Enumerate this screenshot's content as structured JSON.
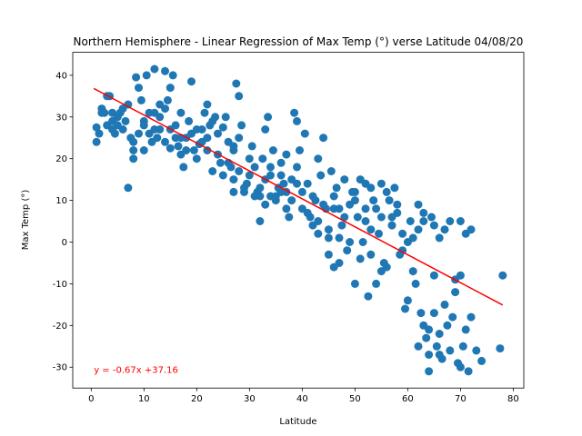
{
  "chart_data": {
    "type": "scatter",
    "title": "Northern Hemisphere - Linear Regression of Max Temp (°) verse Latitude 04/08/20",
    "xlabel": "Latitude",
    "ylabel": "Max Temp (°)",
    "xlim": [
      -3.5,
      82
    ],
    "ylim": [
      -35,
      45.5
    ],
    "xticks": [
      0,
      10,
      20,
      30,
      40,
      50,
      60,
      70,
      80
    ],
    "yticks": [
      -30,
      -20,
      -10,
      0,
      10,
      20,
      30,
      40
    ],
    "grid": false,
    "point_color": "#1f77b4",
    "regression": {
      "slope": -0.67,
      "intercept": 37.16,
      "x_range": [
        0.5,
        78
      ],
      "color": "#ff0000",
      "equation_text": "y = -0.67x +37.16",
      "equation_position": [
        0.5,
        -30.5
      ]
    },
    "points": [
      [
        1,
        24
      ],
      [
        1,
        27.5
      ],
      [
        1.5,
        26
      ],
      [
        2,
        32
      ],
      [
        2.5,
        31
      ],
      [
        3,
        35
      ],
      [
        3.5,
        35
      ],
      [
        3,
        28
      ],
      [
        4,
        27
      ],
      [
        4.5,
        26
      ],
      [
        4,
        31
      ],
      [
        5,
        30
      ],
      [
        5.5,
        31
      ],
      [
        5,
        28
      ],
      [
        6,
        27
      ],
      [
        6.5,
        29
      ],
      [
        7,
        33
      ],
      [
        7,
        13
      ],
      [
        7.5,
        25
      ],
      [
        8,
        22
      ],
      [
        8,
        20
      ],
      [
        8.5,
        39.5
      ],
      [
        9,
        26
      ],
      [
        9.5,
        34
      ],
      [
        9,
        37
      ],
      [
        10,
        28
      ],
      [
        10,
        22
      ],
      [
        10.5,
        40
      ],
      [
        11,
        26
      ],
      [
        11,
        31
      ],
      [
        11.5,
        24
      ],
      [
        12,
        41.5
      ],
      [
        12,
        27
      ],
      [
        12.5,
        25
      ],
      [
        13,
        33
      ],
      [
        13,
        30
      ],
      [
        14,
        41
      ],
      [
        14,
        32
      ],
      [
        14.5,
        34
      ],
      [
        15,
        27
      ],
      [
        15,
        22.5
      ],
      [
        15,
        37
      ],
      [
        15.5,
        40
      ],
      [
        16,
        25
      ],
      [
        16.5,
        23
      ],
      [
        17,
        31
      ],
      [
        17,
        21
      ],
      [
        17.5,
        18
      ],
      [
        18,
        25
      ],
      [
        18.5,
        29
      ],
      [
        19,
        38.5
      ],
      [
        19.5,
        22
      ],
      [
        20,
        20
      ],
      [
        20.5,
        23.5
      ],
      [
        21,
        27
      ],
      [
        21.5,
        31
      ],
      [
        22,
        25
      ],
      [
        22.5,
        28
      ],
      [
        22,
        22
      ],
      [
        23,
        17
      ],
      [
        23.5,
        30
      ],
      [
        24,
        26
      ],
      [
        24.5,
        19
      ],
      [
        25,
        27.5
      ],
      [
        25.5,
        30
      ],
      [
        26,
        24
      ],
      [
        26.5,
        18
      ],
      [
        27,
        22
      ],
      [
        27.5,
        38
      ],
      [
        27,
        15
      ],
      [
        28,
        17
      ],
      [
        28.5,
        28
      ],
      [
        28,
        35
      ],
      [
        29,
        12
      ],
      [
        29.5,
        14
      ],
      [
        30,
        20
      ],
      [
        30.5,
        23
      ],
      [
        31,
        18
      ],
      [
        31.5,
        12
      ],
      [
        32,
        5
      ],
      [
        32,
        11
      ],
      [
        32.5,
        20
      ],
      [
        33,
        15
      ],
      [
        33,
        27
      ],
      [
        33.5,
        30
      ],
      [
        34,
        16
      ],
      [
        34.5,
        22
      ],
      [
        34,
        11
      ],
      [
        35,
        10
      ],
      [
        35.5,
        13
      ],
      [
        36,
        12
      ],
      [
        36.5,
        14
      ],
      [
        36,
        19
      ],
      [
        37,
        21
      ],
      [
        37,
        8
      ],
      [
        37.5,
        6
      ],
      [
        38,
        15
      ],
      [
        38.5,
        31
      ],
      [
        39,
        29
      ],
      [
        39,
        18
      ],
      [
        39.5,
        22
      ],
      [
        40,
        12
      ],
      [
        40.5,
        26
      ],
      [
        41,
        14
      ],
      [
        41.5,
        6
      ],
      [
        42,
        4
      ],
      [
        42.5,
        10
      ],
      [
        43,
        20
      ],
      [
        43,
        5
      ],
      [
        43.5,
        16
      ],
      [
        44,
        25
      ],
      [
        44.5,
        8
      ],
      [
        45,
        3
      ],
      [
        45,
        -3
      ],
      [
        45.5,
        17
      ],
      [
        46,
        11
      ],
      [
        46.5,
        13
      ],
      [
        47,
        8
      ],
      [
        47,
        -5
      ],
      [
        47.5,
        4
      ],
      [
        48,
        15
      ],
      [
        48.5,
        -2
      ],
      [
        49,
        9
      ],
      [
        49.5,
        12
      ],
      [
        50,
        10
      ],
      [
        50,
        -10
      ],
      [
        50.5,
        6
      ],
      [
        51,
        15
      ],
      [
        51,
        -4
      ],
      [
        51.5,
        0
      ],
      [
        52,
        14
      ],
      [
        52.5,
        -13
      ],
      [
        53,
        13
      ],
      [
        53.5,
        10
      ],
      [
        54,
        8
      ],
      [
        54.5,
        2
      ],
      [
        55,
        -7
      ],
      [
        55,
        14
      ],
      [
        55.5,
        -5
      ],
      [
        56,
        12
      ],
      [
        56.5,
        10
      ],
      [
        57,
        4
      ],
      [
        57.5,
        13
      ],
      [
        58,
        7
      ],
      [
        58.5,
        -3
      ],
      [
        59,
        2
      ],
      [
        59.5,
        -16
      ],
      [
        60,
        -14
      ],
      [
        60.5,
        5
      ],
      [
        61,
        -7
      ],
      [
        61.5,
        -10
      ],
      [
        62,
        9
      ],
      [
        62.5,
        -17
      ],
      [
        63,
        -20
      ],
      [
        63.5,
        -23
      ],
      [
        64,
        -27
      ],
      [
        64,
        -31
      ],
      [
        64.5,
        6
      ],
      [
        65,
        -17
      ],
      [
        65,
        -8
      ],
      [
        65.5,
        -25
      ],
      [
        66,
        -22
      ],
      [
        66.5,
        -28
      ],
      [
        67,
        -15
      ],
      [
        67.5,
        -20
      ],
      [
        68,
        -26
      ],
      [
        68.5,
        -18
      ],
      [
        69,
        -12
      ],
      [
        69.5,
        -29
      ],
      [
        70,
        -30
      ],
      [
        70,
        -8
      ],
      [
        70.5,
        -25
      ],
      [
        71,
        -21
      ],
      [
        71.5,
        -31
      ],
      [
        72,
        -18
      ],
      [
        72,
        3
      ],
      [
        73,
        -26
      ],
      [
        74,
        -28.5
      ],
      [
        77.5,
        -25.5
      ],
      [
        78,
        -8
      ],
      [
        60,
        0
      ],
      [
        62,
        3
      ],
      [
        63,
        7
      ],
      [
        65,
        4
      ],
      [
        66,
        1
      ],
      [
        68,
        5
      ],
      [
        70,
        5
      ],
      [
        71,
        2
      ],
      [
        58,
        9
      ],
      [
        57,
        6
      ],
      [
        55,
        6
      ],
      [
        53,
        3
      ],
      [
        52,
        8
      ],
      [
        50,
        12
      ],
      [
        48,
        6
      ],
      [
        46,
        8
      ],
      [
        44,
        9
      ],
      [
        42,
        11
      ],
      [
        40,
        8
      ],
      [
        38,
        10
      ],
      [
        36,
        16
      ],
      [
        34,
        18
      ],
      [
        32,
        13
      ],
      [
        30,
        16
      ],
      [
        28,
        25
      ],
      [
        26,
        19
      ],
      [
        24,
        21
      ],
      [
        22,
        33
      ],
      [
        20,
        27
      ],
      [
        18,
        22
      ],
      [
        16,
        28
      ],
      [
        14,
        24
      ],
      [
        12,
        31
      ],
      [
        10,
        29
      ],
      [
        8,
        24
      ],
      [
        6,
        32
      ],
      [
        4,
        29
      ],
      [
        2,
        31
      ],
      [
        13,
        27
      ],
      [
        19,
        26
      ],
      [
        25,
        16
      ],
      [
        27,
        12
      ],
      [
        35,
        11
      ],
      [
        41,
        7
      ],
      [
        43,
        2
      ],
      [
        47,
        1
      ],
      [
        49,
        0
      ],
      [
        53,
        -3
      ],
      [
        59,
        -2
      ],
      [
        61,
        1
      ],
      [
        63,
        5
      ],
      [
        67,
        3
      ],
      [
        69,
        -9
      ],
      [
        66,
        -27
      ],
      [
        64,
        -21
      ],
      [
        62,
        -25
      ],
      [
        56,
        -6
      ],
      [
        54,
        -10
      ],
      [
        52,
        5
      ],
      [
        46,
        -6
      ],
      [
        45,
        1
      ],
      [
        39,
        14
      ],
      [
        37,
        12
      ],
      [
        33,
        9
      ],
      [
        31,
        11
      ],
      [
        29,
        13
      ],
      [
        27,
        23
      ],
      [
        23,
        29
      ],
      [
        21,
        24
      ],
      [
        17,
        25
      ]
    ]
  }
}
